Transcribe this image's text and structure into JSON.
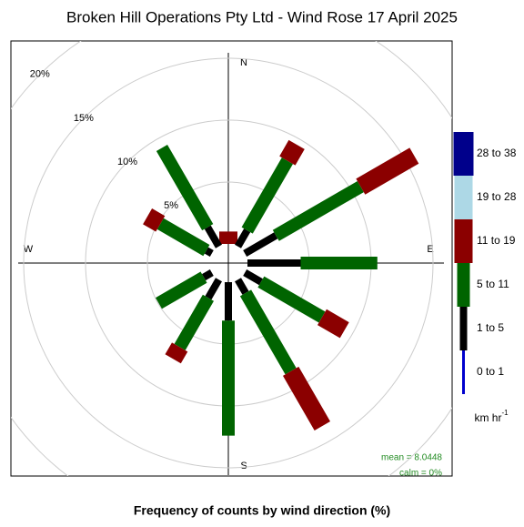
{
  "chart_data": {
    "type": "windrose",
    "title": "Broken Hill Operations Pty Ltd - Wind Rose 17 April 2025",
    "x_label": "Frequency of counts by wind direction (%)",
    "compass": [
      "N",
      "E",
      "S",
      "W"
    ],
    "x": [
      0,
      30,
      60,
      90,
      120,
      150,
      180,
      210,
      240,
      270,
      300,
      330
    ],
    "ylim": [
      0,
      20
    ],
    "yticks": [
      {
        "value": 5,
        "label": "5%"
      },
      {
        "value": 10,
        "label": "10%"
      },
      {
        "value": 15,
        "label": "15%"
      },
      {
        "value": 20,
        "label": "20%"
      }
    ],
    "series": [
      {
        "name": "0 to 1",
        "color": "#0000cd",
        "values": [
          0,
          0,
          0,
          0,
          0,
          0,
          0,
          0,
          0,
          0,
          0,
          0
        ]
      },
      {
        "name": "1 to 5",
        "color": "#000000",
        "values": [
          0,
          1.5,
          2.9,
          4.3,
          1.5,
          1.25,
          3.1,
          1.7,
          0.75,
          0,
          0.5,
          1.8
        ]
      },
      {
        "name": "5 to 11",
        "color": "#006400",
        "values": [
          0,
          6.5,
          7.9,
          6.2,
          5.7,
          7.3,
          9.3,
          4.6,
          4.2,
          0,
          4.3,
          7.4
        ]
      },
      {
        "name": "11 to 19",
        "color": "#8b0000",
        "values": [
          1.0,
          1.5,
          5.0,
          0,
          2.1,
          5.1,
          0,
          1.1,
          0,
          0,
          1.2,
          0
        ]
      },
      {
        "name": "19 to 28",
        "color": "#add8e6",
        "values": [
          0,
          0,
          0,
          0,
          0,
          0,
          0,
          0,
          0,
          0,
          0,
          0
        ]
      },
      {
        "name": "28 to 38",
        "color": "#00008b",
        "values": [
          0,
          0,
          0,
          0,
          0,
          0,
          0,
          0,
          0,
          0,
          0,
          0
        ]
      }
    ],
    "legend_units": "km hr",
    "legend_units_exponent": "-1",
    "annotations": [
      "mean = 8.0448",
      "calm = 0%"
    ]
  }
}
